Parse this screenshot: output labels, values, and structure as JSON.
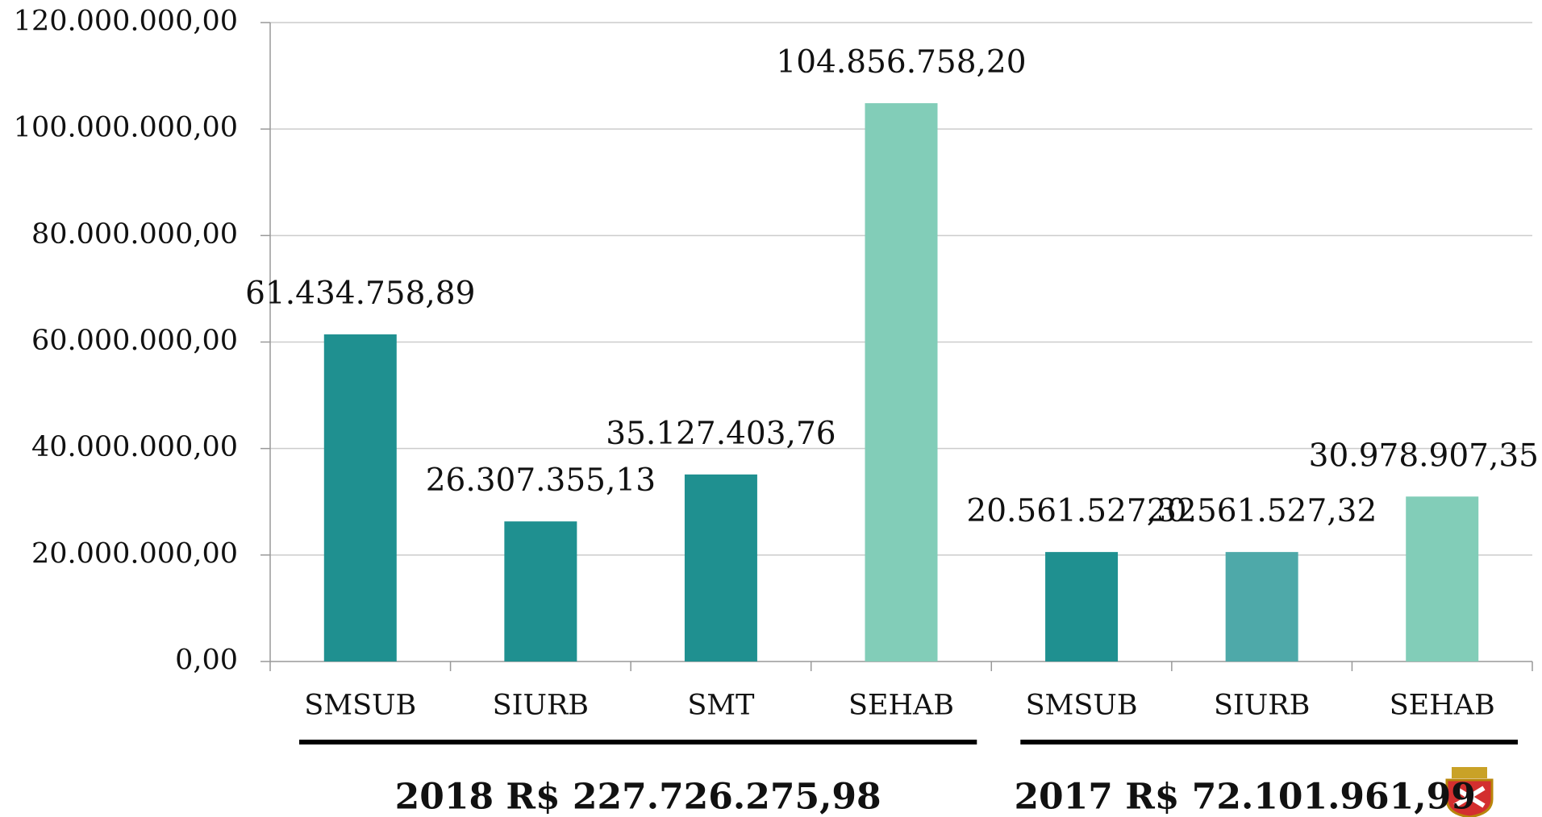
{
  "chart_data": {
    "type": "bar",
    "categories": [
      "SMSUB",
      "SIURB",
      "SMT",
      "SEHAB",
      "SMSUB",
      "SIURB",
      "SEHAB"
    ],
    "values": [
      61434758.89,
      26307355.13,
      35127403.76,
      104856758.2,
      20561527.32,
      20561527.32,
      30978907.35
    ],
    "value_labels": [
      "61.434.758,89",
      "26.307.355,13",
      "35.127.403,76",
      "104.856.758,20",
      "20.561.527,32",
      "20.561.527,32",
      "30.978.907,35"
    ],
    "colors": [
      "#1f9090",
      "#1f9090",
      "#1f9090",
      "#82cdb8",
      "#1f9090",
      "#4ea9a9",
      "#82cdb8"
    ],
    "ylim": [
      0,
      120000000
    ],
    "yticks": [
      {
        "value": 0,
        "label": "0,00"
      },
      {
        "value": 20000000,
        "label": "20.000.000,00"
      },
      {
        "value": 40000000,
        "label": "40.000.000,00"
      },
      {
        "value": 60000000,
        "label": "60.000.000,00"
      },
      {
        "value": 80000000,
        "label": "80.000.000,00"
      },
      {
        "value": 100000000,
        "label": "100.000.000,00"
      },
      {
        "value": 120000000,
        "label": "120.000.000,00"
      }
    ],
    "grid": true,
    "groups": [
      "2018 R$ 227.726.275,98",
      "2017 R$ 72.101.961,99"
    ]
  }
}
